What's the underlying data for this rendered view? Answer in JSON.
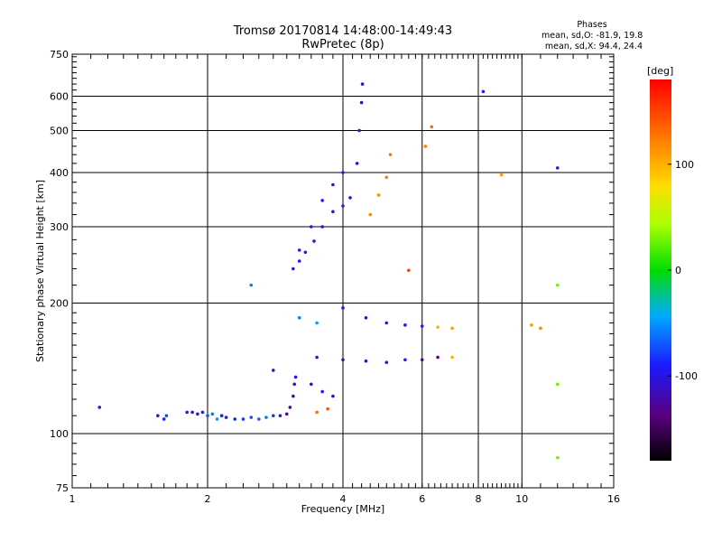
{
  "chart_data": {
    "type": "scatter",
    "title": "Tromsø 20170814 14:48:00-14:49:43",
    "subtitle": "RwPretec (8p)",
    "xlabel": "Frequency [MHz]",
    "ylabel": "Stationary phase Virtual Height [km]",
    "x_scale": "log",
    "y_scale": "log",
    "xlim": [
      1,
      16
    ],
    "ylim": [
      75,
      750
    ],
    "x_ticks": [
      "1",
      "2",
      "4",
      "6",
      "8",
      "10",
      "16"
    ],
    "x_tick_values": [
      1,
      2,
      4,
      6,
      8,
      10,
      16
    ],
    "y_ticks": [
      "75",
      "100",
      "200",
      "300",
      "400",
      "500",
      "600",
      "750"
    ],
    "y_tick_values": [
      75,
      100,
      200,
      300,
      400,
      500,
      600,
      750
    ],
    "grid": true,
    "phases": {
      "header": "Phases",
      "o_label": "mean, sd,O:",
      "o_values": "-81.9, 19.8",
      "x_label": "mean, sd,X:",
      "x_values": "94.4, 24.4"
    },
    "colorbar": {
      "unit": "[deg]",
      "ticks": [
        "100",
        "0",
        "-100"
      ],
      "tick_values": [
        100,
        0,
        -100
      ],
      "range": [
        -180,
        180
      ]
    },
    "series": [
      {
        "values": [
          {
            "x": 1.15,
            "y": 115,
            "p": -100
          },
          {
            "x": 1.55,
            "y": 110,
            "p": -90
          },
          {
            "x": 1.6,
            "y": 108,
            "p": -85
          },
          {
            "x": 1.62,
            "y": 110,
            "p": -75
          },
          {
            "x": 1.8,
            "y": 112,
            "p": -110
          },
          {
            "x": 1.85,
            "y": 112,
            "p": -105
          },
          {
            "x": 1.9,
            "y": 111,
            "p": -100
          },
          {
            "x": 1.95,
            "y": 112,
            "p": -95
          },
          {
            "x": 2.0,
            "y": 110,
            "p": -70
          },
          {
            "x": 2.05,
            "y": 111,
            "p": -60
          },
          {
            "x": 2.1,
            "y": 108,
            "p": -50
          },
          {
            "x": 2.15,
            "y": 110,
            "p": -95
          },
          {
            "x": 2.2,
            "y": 109,
            "p": -90
          },
          {
            "x": 2.3,
            "y": 108,
            "p": -85
          },
          {
            "x": 2.4,
            "y": 108,
            "p": -80
          },
          {
            "x": 2.5,
            "y": 109,
            "p": -70
          },
          {
            "x": 2.6,
            "y": 108,
            "p": -65
          },
          {
            "x": 2.7,
            "y": 109,
            "p": -60
          },
          {
            "x": 2.8,
            "y": 110,
            "p": -80
          },
          {
            "x": 2.9,
            "y": 110,
            "p": -100
          },
          {
            "x": 3.0,
            "y": 111,
            "p": -125
          },
          {
            "x": 3.05,
            "y": 115,
            "p": -130
          },
          {
            "x": 3.1,
            "y": 122,
            "p": -120
          },
          {
            "x": 3.12,
            "y": 130,
            "p": -110
          },
          {
            "x": 3.14,
            "y": 135,
            "p": -100
          },
          {
            "x": 3.1,
            "y": 240,
            "p": -100
          },
          {
            "x": 3.2,
            "y": 250,
            "p": -100
          },
          {
            "x": 3.3,
            "y": 262,
            "p": -95
          },
          {
            "x": 3.45,
            "y": 278,
            "p": -95
          },
          {
            "x": 3.6,
            "y": 300,
            "p": -100
          },
          {
            "x": 3.8,
            "y": 325,
            "p": -100
          },
          {
            "x": 4.0,
            "y": 335,
            "p": -90
          },
          {
            "x": 4.15,
            "y": 350,
            "p": -100
          },
          {
            "x": 4.3,
            "y": 420,
            "p": -110
          },
          {
            "x": 4.35,
            "y": 500,
            "p": -110
          },
          {
            "x": 4.4,
            "y": 580,
            "p": -110
          },
          {
            "x": 4.42,
            "y": 640,
            "p": -115
          },
          {
            "x": 3.2,
            "y": 265,
            "p": -95
          },
          {
            "x": 3.4,
            "y": 300,
            "p": -95
          },
          {
            "x": 3.6,
            "y": 345,
            "p": -100
          },
          {
            "x": 3.8,
            "y": 375,
            "p": -100
          },
          {
            "x": 4.0,
            "y": 400,
            "p": -95
          },
          {
            "x": 4.6,
            "y": 320,
            "p": 120
          },
          {
            "x": 4.8,
            "y": 355,
            "p": 115
          },
          {
            "x": 5.0,
            "y": 390,
            "p": 120
          },
          {
            "x": 5.1,
            "y": 440,
            "p": 125
          },
          {
            "x": 3.2,
            "y": 185,
            "p": -60
          },
          {
            "x": 3.5,
            "y": 180,
            "p": -50
          },
          {
            "x": 4.0,
            "y": 195,
            "p": -100
          },
          {
            "x": 4.5,
            "y": 185,
            "p": -110
          },
          {
            "x": 5.0,
            "y": 180,
            "p": -100
          },
          {
            "x": 5.5,
            "y": 178,
            "p": -95
          },
          {
            "x": 6.0,
            "y": 177,
            "p": -90
          },
          {
            "x": 6.5,
            "y": 176,
            "p": 100
          },
          {
            "x": 7.0,
            "y": 175,
            "p": 110
          },
          {
            "x": 3.5,
            "y": 150,
            "p": -110
          },
          {
            "x": 4.0,
            "y": 148,
            "p": -120
          },
          {
            "x": 4.5,
            "y": 147,
            "p": -110
          },
          {
            "x": 5.0,
            "y": 146,
            "p": -100
          },
          {
            "x": 5.5,
            "y": 148,
            "p": -90
          },
          {
            "x": 6.0,
            "y": 148,
            "p": -130
          },
          {
            "x": 6.5,
            "y": 150,
            "p": -140
          },
          {
            "x": 7.0,
            "y": 150,
            "p": 100
          },
          {
            "x": 3.4,
            "y": 130,
            "p": -110
          },
          {
            "x": 3.6,
            "y": 125,
            "p": -100
          },
          {
            "x": 3.8,
            "y": 122,
            "p": -95
          },
          {
            "x": 3.5,
            "y": 112,
            "p": 130
          },
          {
            "x": 3.7,
            "y": 114,
            "p": 140
          },
          {
            "x": 5.6,
            "y": 238,
            "p": 150
          },
          {
            "x": 6.3,
            "y": 510,
            "p": 130
          },
          {
            "x": 6.1,
            "y": 460,
            "p": 120
          },
          {
            "x": 8.2,
            "y": 615,
            "p": -100
          },
          {
            "x": 9.0,
            "y": 395,
            "p": 110
          },
          {
            "x": 12.0,
            "y": 410,
            "p": -100
          },
          {
            "x": 12.0,
            "y": 220,
            "p": 30
          },
          {
            "x": 12.0,
            "y": 130,
            "p": 30
          },
          {
            "x": 12.0,
            "y": 88,
            "p": 30
          },
          {
            "x": 11.0,
            "y": 175,
            "p": 120
          },
          {
            "x": 10.5,
            "y": 178,
            "p": 110
          },
          {
            "x": 2.5,
            "y": 220,
            "p": -60
          },
          {
            "x": 2.8,
            "y": 140,
            "p": -100
          }
        ]
      }
    ]
  }
}
